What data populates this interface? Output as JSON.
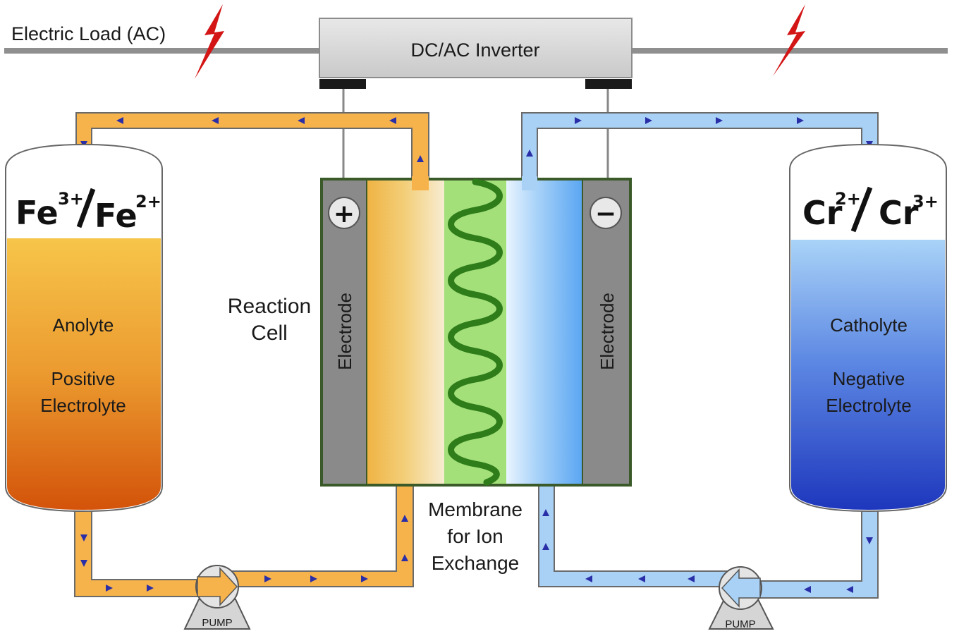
{
  "load_label": "Electric Load (AC)",
  "inverter_label": "DC/AC Inverter",
  "reaction_cell_line1": "Reaction",
  "reaction_cell_line2": "Cell",
  "electrode_left": "Electrode",
  "electrode_right": "Electrode",
  "plus_sign": "+",
  "minus_sign": "−",
  "membrane_line1": "Membrane",
  "membrane_line2": "for Ion",
  "membrane_line3": "Exchange",
  "left_tank": {
    "ion1": "Fe",
    "ion1_charge": "3+",
    "ion2": "Fe",
    "ion2_charge": "2+",
    "line1": "Anolyte",
    "line2": "Positive",
    "line3": "Electrolyte"
  },
  "right_tank": {
    "ion1": "Cr",
    "ion1_charge": "2+",
    "ion2": "Cr",
    "ion2_charge": "3+",
    "line1": "Catholyte",
    "line2": "Negative",
    "line3": "Electrolyte"
  },
  "pump_left": "PUMP",
  "pump_right": "PUMP",
  "colors": {
    "anolyte_top": "#f5c242",
    "anolyte_bottom": "#d4560a",
    "catholyte_top": "#a9d3f7",
    "catholyte_bottom": "#1f3fc0",
    "orange_pipe": "#f7b34b",
    "blue_pipe": "#a8d1f5",
    "membrane_green": "#a4e07a",
    "spring_green": "#2e8b1e",
    "electrode_gray": "#8a8a8a",
    "lightning_red": "#d31515"
  }
}
